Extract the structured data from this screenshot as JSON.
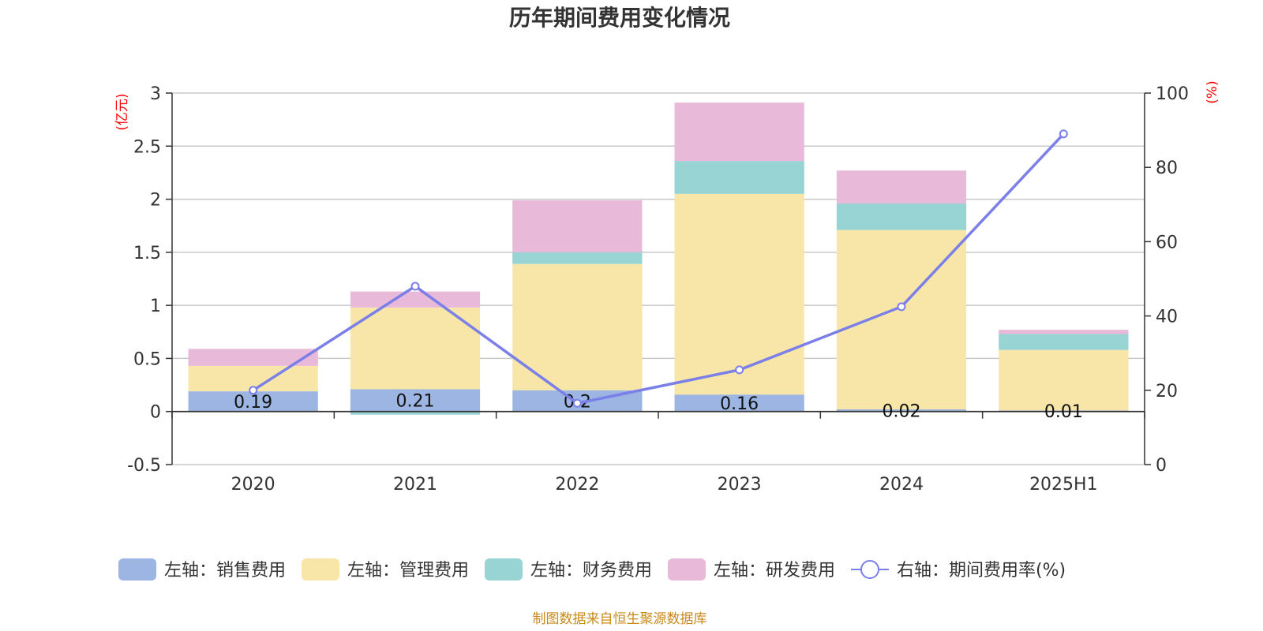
{
  "title": "历年期间费用变化情况",
  "source": "制图数据来自恒生聚源数据库",
  "chart_data": {
    "type": "bar",
    "stacked": true,
    "categories": [
      "2020",
      "2021",
      "2022",
      "2023",
      "2024",
      "2025H1"
    ],
    "left_axis": {
      "unit": "(亿元)",
      "ylim": [
        -0.5,
        3
      ],
      "ticks": [
        "-0.5",
        "0",
        "0.5",
        "1",
        "1.5",
        "2",
        "2.5",
        "3"
      ]
    },
    "right_axis": {
      "unit": "(%)",
      "ylim": [
        0,
        100
      ],
      "ticks": [
        "0",
        "20",
        "40",
        "60",
        "80",
        "100"
      ]
    },
    "series": [
      {
        "name": "左轴：销售费用",
        "color": "#9cb5e2",
        "values": [
          0.19,
          0.21,
          0.2,
          0.16,
          0.02,
          0.01
        ],
        "labels": [
          "0.19",
          "0.21",
          "0.2",
          "0.16",
          "0.02",
          "0.01"
        ]
      },
      {
        "name": "左轴：管理费用",
        "color": "#f8e6a8",
        "values": [
          0.24,
          0.77,
          1.19,
          1.89,
          1.69,
          0.57
        ]
      },
      {
        "name": "左轴：财务费用",
        "color": "#98d4d4",
        "values": [
          0.0,
          -0.03,
          0.11,
          0.31,
          0.25,
          0.15
        ]
      },
      {
        "name": "左轴：研发费用",
        "color": "#e8b9d8",
        "values": [
          0.16,
          0.15,
          0.49,
          0.55,
          0.31,
          0.04
        ]
      }
    ],
    "line": {
      "name": "右轴：期间费用率(%)",
      "color": "#7b7fe8",
      "values": [
        20,
        48,
        16.5,
        25.5,
        42.5,
        89
      ]
    },
    "grid": true,
    "legend_position": "bottom"
  }
}
